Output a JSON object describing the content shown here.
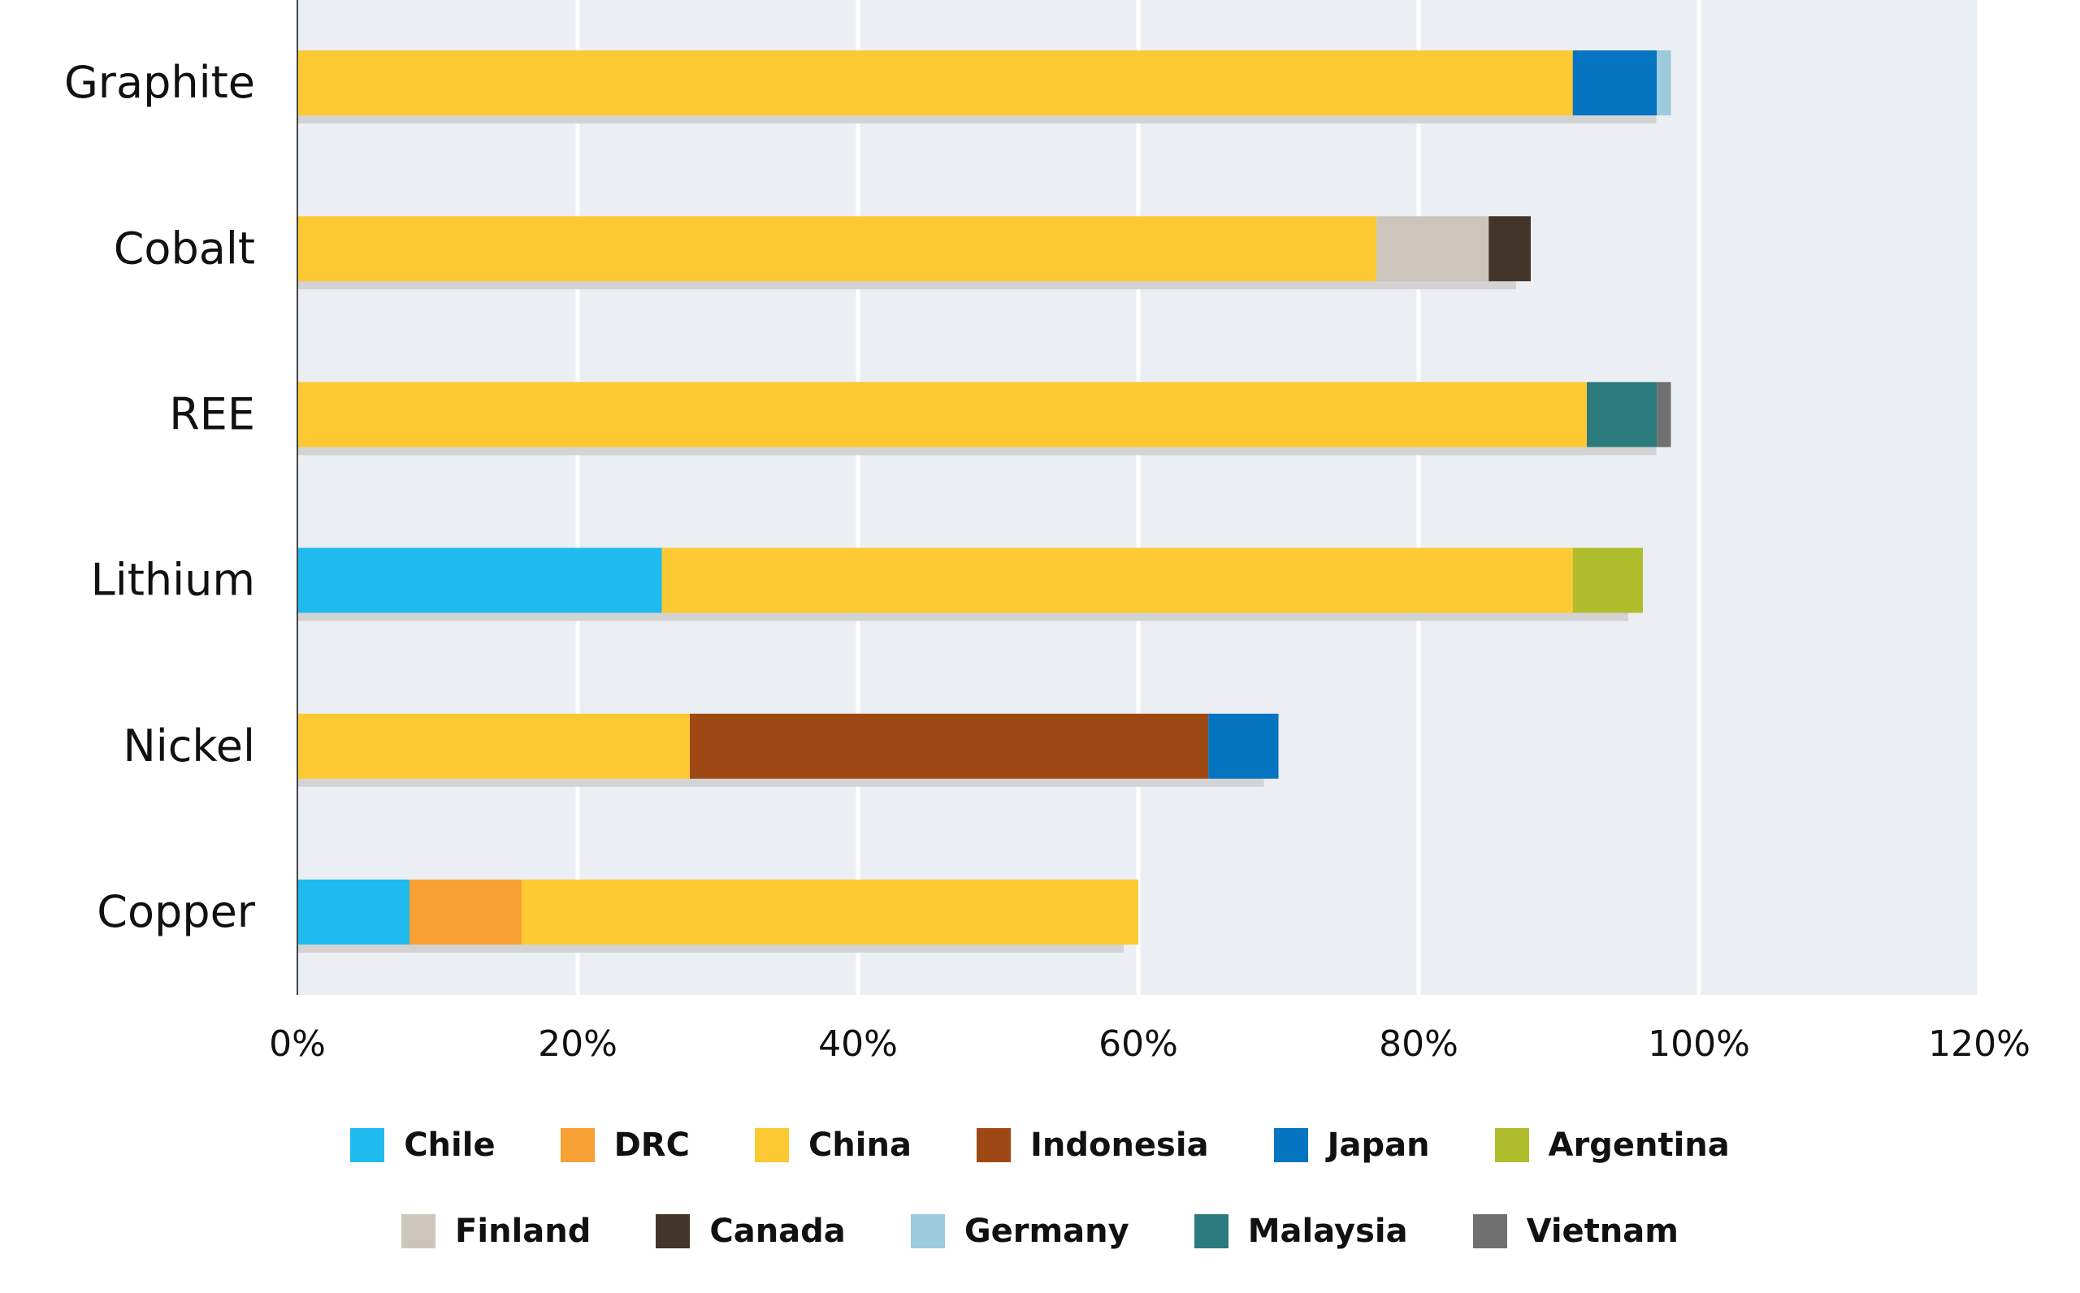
{
  "chart_data": {
    "type": "bar",
    "orientation": "horizontal",
    "stacked": true,
    "categories": [
      "Graphite",
      "Cobalt",
      "REE",
      "Lithium",
      "Nickel",
      "Copper"
    ],
    "series": [
      {
        "name": "Chile",
        "color": "#1fbbef",
        "values": [
          0,
          0,
          0,
          26,
          0,
          8
        ]
      },
      {
        "name": "DRC",
        "color": "#f7a033",
        "values": [
          0,
          0,
          0,
          0,
          0,
          8
        ]
      },
      {
        "name": "China",
        "color": "#fdc933",
        "values": [
          91,
          77,
          92,
          65,
          28,
          44
        ]
      },
      {
        "name": "Indonesia",
        "color": "#9e4914",
        "values": [
          0,
          0,
          0,
          0,
          37,
          0
        ]
      },
      {
        "name": "Japan",
        "color": "#0574c1",
        "values": [
          6,
          0,
          0,
          0,
          5,
          0
        ]
      },
      {
        "name": "Argentina",
        "color": "#afbd2c",
        "values": [
          0,
          0,
          0,
          5,
          0,
          0
        ]
      },
      {
        "name": "Finland",
        "color": "#cbc5bb",
        "values": [
          0,
          8,
          0,
          0,
          0,
          0
        ]
      },
      {
        "name": "Canada",
        "color": "#433529",
        "values": [
          0,
          3,
          0,
          0,
          0,
          0
        ]
      },
      {
        "name": "Germany",
        "color": "#9ccbdb",
        "values": [
          1,
          0,
          0,
          0,
          0,
          0
        ]
      },
      {
        "name": "Malaysia",
        "color": "#2b7b7e",
        "values": [
          0,
          0,
          5,
          0,
          0,
          0
        ]
      },
      {
        "name": "Vietnam",
        "color": "#707070",
        "values": [
          0,
          0,
          1,
          0,
          0,
          0
        ]
      }
    ],
    "x_ticks": [
      "0%",
      "20%",
      "40%",
      "60%",
      "80%",
      "100%",
      "120%"
    ],
    "xlim": [
      0,
      120
    ],
    "grid": true,
    "legend_placement": "bottom",
    "colors": {
      "plot_background": "#ebeef2",
      "gridline": "#ffffff",
      "axis": "#444444",
      "shadow": "#d3d3d3"
    }
  }
}
